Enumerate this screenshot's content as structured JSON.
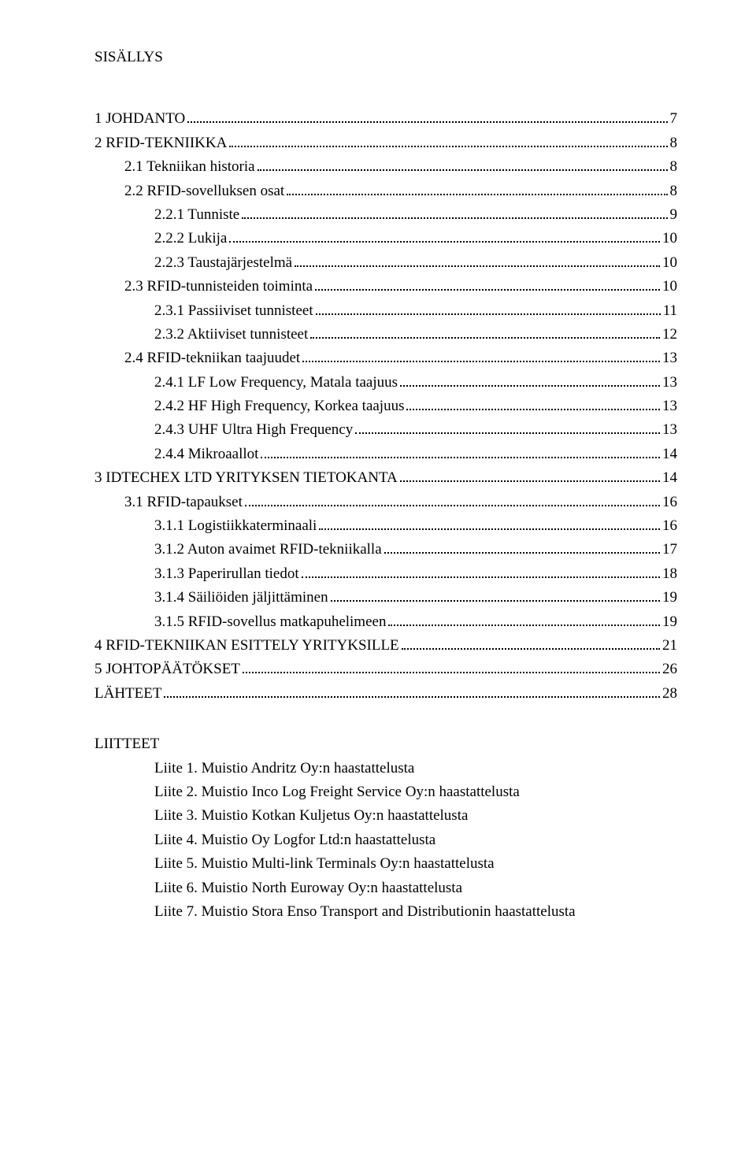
{
  "title": "SISÄLLYS",
  "toc": [
    {
      "level": 1,
      "label": "1 JOHDANTO",
      "page": "7"
    },
    {
      "level": 1,
      "label": "2 RFID-TEKNIIKKA",
      "page": "8"
    },
    {
      "level": 2,
      "label": "2.1 Tekniikan historia",
      "page": "8"
    },
    {
      "level": 2,
      "label": "2.2 RFID-sovelluksen osat",
      "page": "8"
    },
    {
      "level": 3,
      "label": "2.2.1 Tunniste",
      "page": "9"
    },
    {
      "level": 3,
      "label": "2.2.2 Lukija",
      "page": "10"
    },
    {
      "level": 3,
      "label": "2.2.3 Taustajärjestelmä",
      "page": "10"
    },
    {
      "level": 2,
      "label": "2.3 RFID-tunnisteiden toiminta",
      "page": "10"
    },
    {
      "level": 3,
      "label": "2.3.1 Passiiviset tunnisteet",
      "page": "11"
    },
    {
      "level": 3,
      "label": "2.3.2 Aktiiviset tunnisteet",
      "page": "12"
    },
    {
      "level": 2,
      "label": "2.4 RFID-tekniikan taajuudet",
      "page": "13"
    },
    {
      "level": 3,
      "label": "2.4.1 LF Low Frequency, Matala taajuus",
      "page": "13"
    },
    {
      "level": 3,
      "label": "2.4.2 HF High Frequency, Korkea taajuus",
      "page": "13"
    },
    {
      "level": 3,
      "label": "2.4.3 UHF Ultra High Frequency",
      "page": "13"
    },
    {
      "level": 3,
      "label": "2.4.4 Mikroaallot",
      "page": "14"
    },
    {
      "level": 1,
      "label": "3 IDTECHEX LTD YRITYKSEN TIETOKANTA",
      "page": "14"
    },
    {
      "level": 2,
      "label": "3.1 RFID-tapaukset",
      "page": "16"
    },
    {
      "level": 3,
      "label": "3.1.1 Logistiikkaterminaali",
      "page": "16"
    },
    {
      "level": 3,
      "label": "3.1.2 Auton avaimet RFID-tekniikalla",
      "page": "17"
    },
    {
      "level": 3,
      "label": "3.1.3 Paperirullan tiedot",
      "page": "18"
    },
    {
      "level": 3,
      "label": "3.1.4 Säiliöiden jäljittäminen",
      "page": "19"
    },
    {
      "level": 3,
      "label": "3.1.5 RFID-sovellus matkapuhelimeen",
      "page": "19"
    },
    {
      "level": 1,
      "label": "4 RFID-TEKNIIKAN ESITTELY YRITYKSILLE",
      "page": "21"
    },
    {
      "level": 1,
      "label": "5 JOHTOPÄÄTÖKSET",
      "page": "26"
    },
    {
      "level": 1,
      "label": "LÄHTEET",
      "page": "28"
    }
  ],
  "attachments_title": "LIITTEET",
  "attachments": [
    "Liite 1. Muistio Andritz Oy:n haastattelusta",
    "Liite 2. Muistio Inco Log Freight Service Oy:n haastattelusta",
    "Liite 3. Muistio Kotkan Kuljetus Oy:n haastattelusta",
    "Liite 4. Muistio Oy Logfor Ltd:n haastattelusta",
    "Liite 5. Muistio Multi-link Terminals Oy:n haastattelusta",
    "Liite 6. Muistio North Euroway Oy:n haastattelusta",
    "Liite 7. Muistio Stora Enso Transport and Distributionin haastattelusta"
  ]
}
